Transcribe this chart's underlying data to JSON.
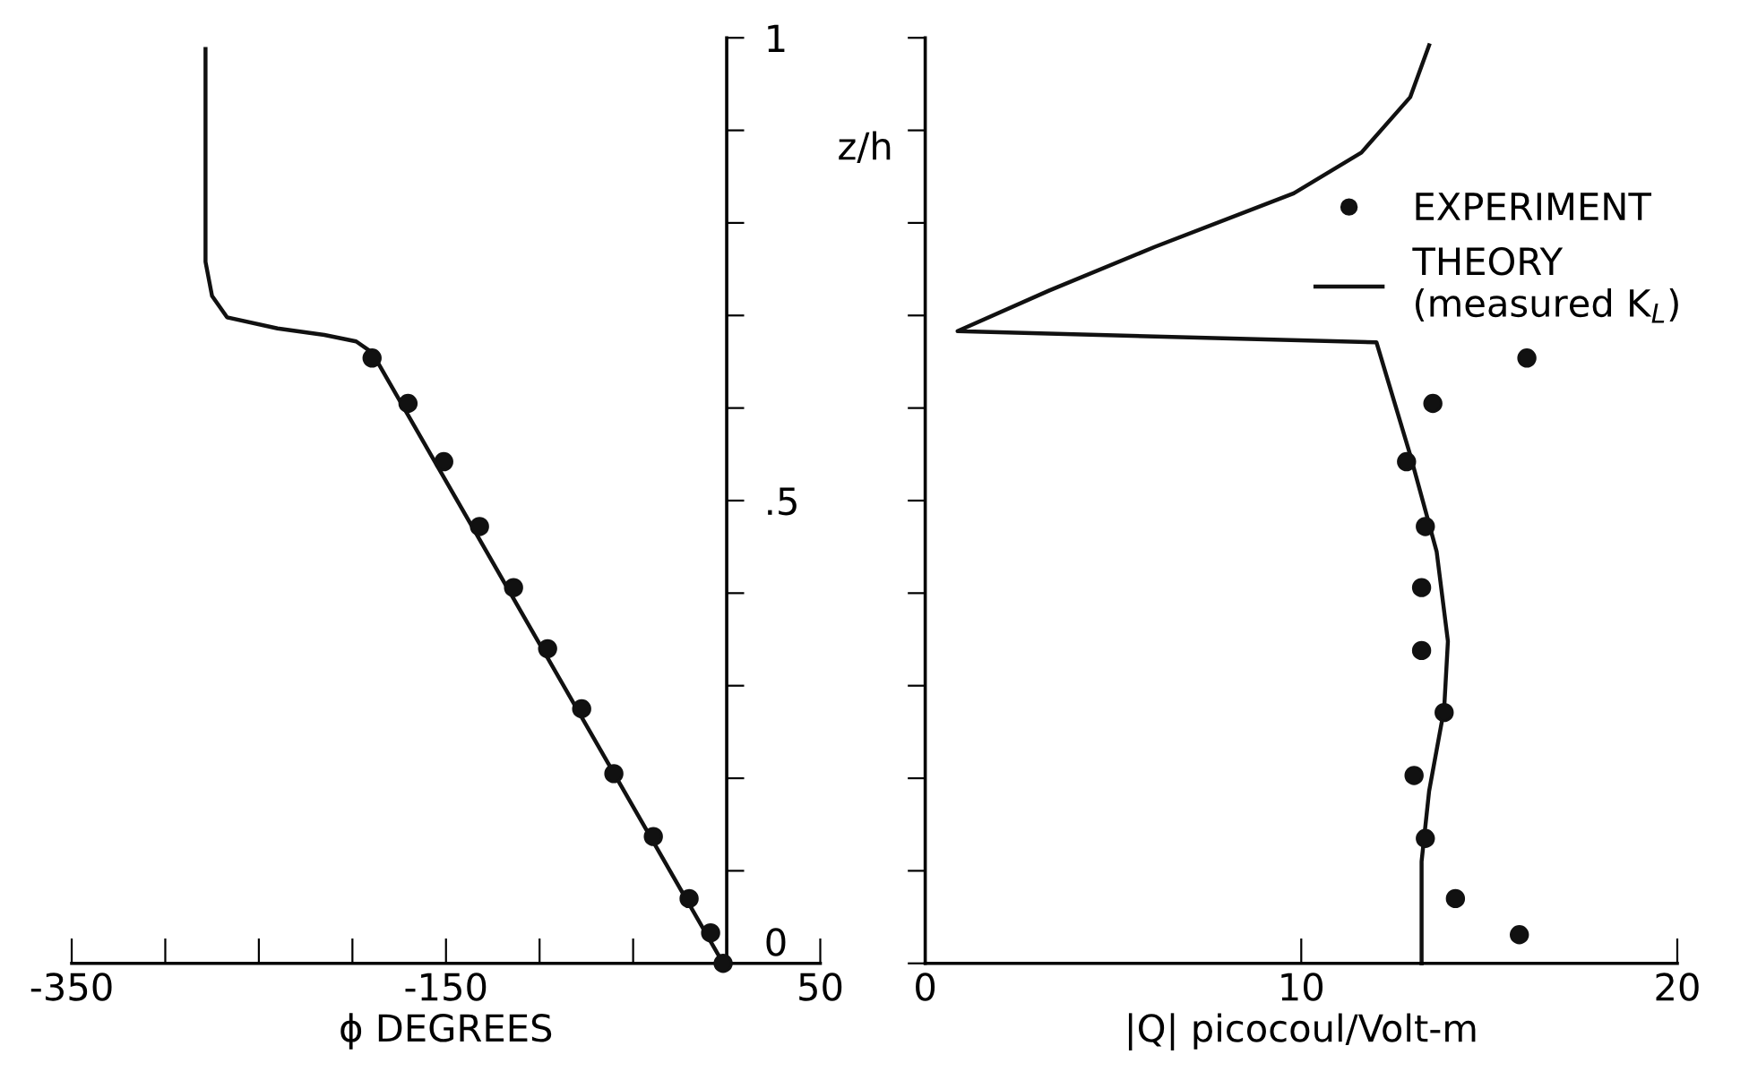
{
  "chart_data": [
    {
      "type": "scatter",
      "xlabel": "ϕ DEGREES",
      "ylabel": "z/h",
      "xlim": [
        -350,
        50
      ],
      "ylim": [
        0,
        1
      ],
      "xticks": [
        -350,
        {
          "value": -300,
          "label": null
        },
        {
          "value": -250,
          "label": null
        },
        {
          "value": -200,
          "label": null
        },
        -150,
        {
          "value": -100,
          "label": null
        },
        {
          "value": -50,
          "label": null
        },
        {
          "value": 0,
          "label": null
        },
        50
      ],
      "yticks": [
        0,
        {
          "value": 0.1,
          "label": null
        },
        {
          "value": 0.2,
          "label": null
        },
        {
          "value": 0.3,
          "label": null
        },
        {
          "value": 0.4,
          "label": null
        },
        {
          "value": 0.5,
          "label": ".5"
        },
        {
          "value": 0.6,
          "label": null
        },
        {
          "value": 0.7,
          "label": null
        },
        {
          "value": 0.8,
          "label": null
        },
        {
          "value": 0.9,
          "label": null
        },
        1
      ],
      "grid": false,
      "legend": false,
      "series": [
        {
          "marker": "circle",
          "color": "#111111",
          "x": [
            -189.5,
            -170.3,
            -151.2,
            -132.1,
            -113.9,
            -95.7,
            -77.5,
            -60.3,
            -39.2,
            -20.1,
            -8.6,
            -1.9
          ],
          "values": [
            0.654,
            0.605,
            0.542,
            0.472,
            0.406,
            0.34,
            0.275,
            0.205,
            0.137,
            0.07,
            0.033,
            0.0
          ]
        },
        {
          "type": "line",
          "color": "#111111",
          "x": [
            -1.9,
            -189.5,
            -198,
            -215,
            -240,
            -267,
            -275,
            -278.5,
            -278.5
          ],
          "values": [
            0.0,
            0.66,
            0.672,
            0.679,
            0.686,
            0.698,
            0.721,
            0.758,
            0.988
          ]
        }
      ]
    },
    {
      "type": "scatter",
      "xlabel": "|Q| picocoul/Volt-m",
      "xlim": [
        0,
        20
      ],
      "ylim": [
        0,
        1
      ],
      "xticks": [
        0,
        10,
        20
      ],
      "yticks": [
        0,
        0.1,
        0.2,
        0.3,
        0.4,
        0.5,
        0.6,
        0.7,
        0.8,
        0.9,
        1
      ],
      "tick_labels": "x",
      "grid": false,
      "legend": "top right",
      "series": [
        {
          "marker": "circle",
          "name": "EXPERIMENT",
          "color": "#111111",
          "x": [
            16.0,
            13.5,
            12.8,
            13.3,
            13.2,
            13.2,
            13.8,
            13.0,
            13.3,
            14.1,
            15.8
          ],
          "values": [
            0.654,
            0.605,
            0.542,
            0.472,
            0.406,
            0.338,
            0.271,
            0.203,
            0.135,
            0.07,
            0.031
          ]
        },
        {
          "type": "line",
          "name": "THEORY\n(measured K$_{L}$)",
          "color": "#111111",
          "x": [
            13.2,
            13.2,
            13.4,
            13.8,
            13.9,
            13.6,
            12.9,
            12.0,
            0.86,
            3.3,
            6.1,
            9.8,
            11.6,
            12.9,
            13.4
          ],
          "values": [
            0.0,
            0.11,
            0.186,
            0.275,
            0.348,
            0.445,
            0.549,
            0.671,
            0.683,
            0.727,
            0.774,
            0.832,
            0.876,
            0.936,
            0.992
          ]
        }
      ]
    }
  ]
}
